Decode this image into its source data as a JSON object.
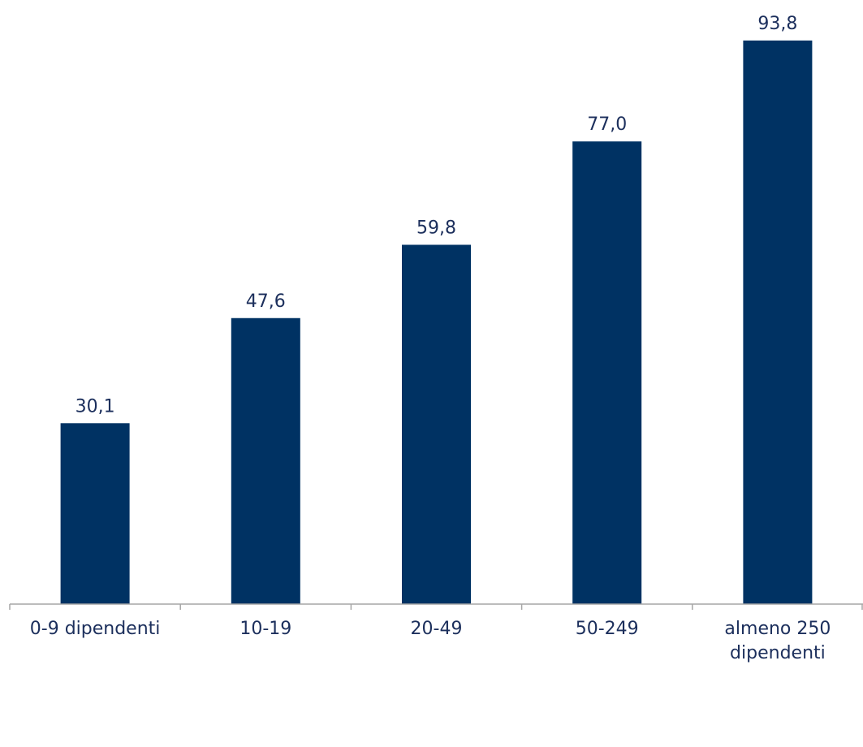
{
  "chart_data": {
    "type": "bar",
    "categories": [
      [
        "0-9 dipendenti"
      ],
      [
        "10-19"
      ],
      [
        "20-49"
      ],
      [
        "50-249"
      ],
      [
        "almeno 250",
        "dipendenti"
      ]
    ],
    "values": [
      30.1,
      47.6,
      59.8,
      77.0,
      93.8
    ],
    "value_labels": [
      "30,1",
      "47,6",
      "59,8",
      "77,0",
      "93,8"
    ],
    "title": "",
    "xlabel": "",
    "ylabel": "",
    "ylim": [
      0,
      100
    ],
    "grid": false,
    "legend": "none",
    "colors": {
      "bar": "#003263",
      "text": "#1c2f5c",
      "axis": "#a6a6a6"
    }
  }
}
